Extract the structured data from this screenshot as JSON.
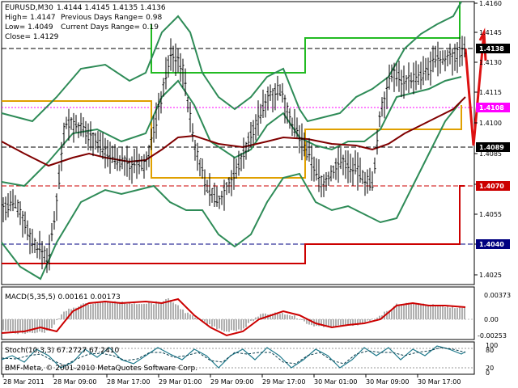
{
  "app": {
    "symbol_timeframe": "EURUSD,M30"
  },
  "main_panel": {
    "ohlc": "1.4144 1.4145 1.4135 1.4136",
    "high": "High= 1.4147",
    "low": "Low= 1.4049",
    "close": "Close= 1.4129",
    "prev_range": "Previous Days Range= 0.98",
    "curr_range": "Current Days Range= 0.19",
    "price_ticks": [
      "1.4160",
      "1.4145",
      "1.4130",
      "1.4115",
      "1.4100",
      "1.4085",
      "1.4070",
      "1.4055",
      "1.4040",
      "1.4025"
    ],
    "price_tags": [
      {
        "label": "1.4138",
        "color": "#000000",
        "text_color": "#ffffff"
      },
      {
        "label": "1.4108",
        "color": "#ff00ff",
        "text_color": "#ffffff"
      },
      {
        "label": "1.4089",
        "color": "#000000",
        "text_color": "#ffffff"
      },
      {
        "label": "1.4070",
        "color": "#cc0000",
        "text_color": "#ffffff"
      },
      {
        "label": "1.4040",
        "color": "#000080",
        "text_color": "#ffffff"
      }
    ],
    "line_colors": {
      "green_band": "#2e8b57",
      "bright_green": "#22bb22",
      "orange": "#e0a000",
      "red": "#cc0000",
      "maroon": "#800000",
      "navy": "#000080"
    }
  },
  "macd_panel": {
    "title": "MACD(5,35,5) 0.00161 0.00173",
    "ticks": [
      "0.00373",
      "0.00",
      "-0.00253"
    ]
  },
  "stoch_panel": {
    "title": "Stoch(10,3,3) 67.2727 67.2410",
    "ticks": [
      "100",
      "80",
      "20",
      "0"
    ]
  },
  "watermark": "BMF-Meta, © 2001-2010 MetaQuotes Software Corp.",
  "time_axis": [
    "28 Mar 2011",
    "28 Mar 09:00",
    "28 Mar 17:00",
    "29 Mar 01:00",
    "29 Mar 09:00",
    "29 Mar 17:00",
    "30 Mar 01:00",
    "30 Mar 09:00",
    "30 Mar 17:00"
  ]
}
